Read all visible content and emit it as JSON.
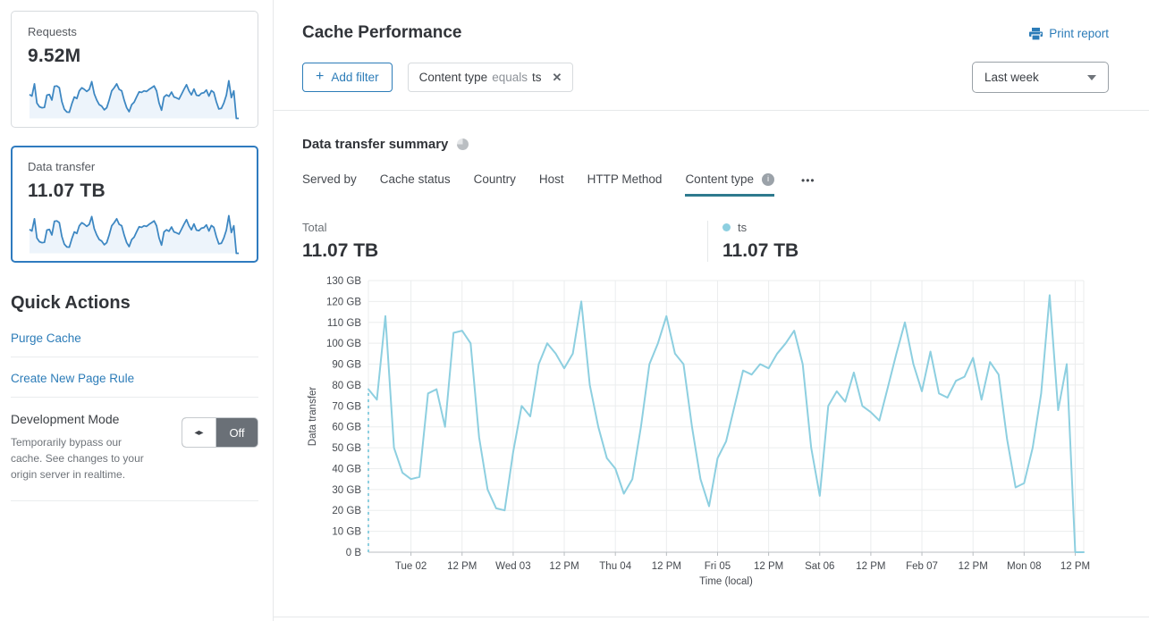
{
  "header": {
    "title": "Cache Performance",
    "print_label": "Print report"
  },
  "filters": {
    "add_filter_label": "Add filter",
    "chip": {
      "field": "Content type",
      "operator": "equals",
      "value": "ts"
    },
    "time_range": "Last week"
  },
  "sidebar": {
    "requests_card": {
      "label": "Requests",
      "value": "9.52M"
    },
    "data_transfer_card": {
      "label": "Data transfer",
      "value": "11.07 TB"
    },
    "quick_actions": {
      "title": "Quick Actions",
      "links": [
        "Purge Cache",
        "Create New Page Rule"
      ],
      "development_mode": {
        "title": "Development Mode",
        "description": "Temporarily bypass our cache. See changes to your origin server in realtime.",
        "toggle_state": "Off"
      }
    }
  },
  "summary": {
    "title": "Data transfer summary",
    "tabs": [
      "Served by",
      "Cache status",
      "Country",
      "Host",
      "HTTP Method",
      "Content type"
    ],
    "active_tab": "Content type",
    "total_label": "Total",
    "total_value": "11.07 TB",
    "series_total": "11.07 TB"
  },
  "icons": {
    "plus": "+",
    "close": "✕",
    "more": "•••",
    "info": "i",
    "dev_mode_arrows": "◂▸"
  },
  "colors": {
    "accent_blue": "#2c7cb8",
    "selected_card_border": "#2f7bbf",
    "series_line": "#8dcfe0",
    "tab_underline": "#2e7a8e",
    "sparkline_stroke": "#3d87c2",
    "sparkline_fill": "#edf4fb"
  },
  "chart_data": {
    "type": "line",
    "title": "Data transfer summary",
    "xlabel": "Time (local)",
    "ylabel": "Data transfer",
    "unit": "GB",
    "ylim": [
      0,
      130
    ],
    "grid": true,
    "legend_position": "top",
    "y_tick_step": 10,
    "y_tick_labels": [
      "0 B",
      "10 GB",
      "20 GB",
      "30 GB",
      "40 GB",
      "50 GB",
      "60 GB",
      "70 GB",
      "80 GB",
      "90 GB",
      "100 GB",
      "110 GB",
      "120 GB",
      "130 GB"
    ],
    "x_tick_labels": [
      "Tue 02",
      "12 PM",
      "Wed 03",
      "12 PM",
      "Thu 04",
      "12 PM",
      "Fri 05",
      "12 PM",
      "Sat 06",
      "12 PM",
      "Feb 07",
      "12 PM",
      "Mon 08",
      "12 PM"
    ],
    "x_tick_start_index": 5,
    "x_tick_step": 6,
    "point_interval_hours": 2,
    "series": [
      {
        "name": "ts",
        "color": "#8dcfe0",
        "total": "11.07 TB",
        "leading_dashed_from_zero": true,
        "values_gb": [
          78,
          73,
          113,
          50,
          38,
          35,
          36,
          76,
          78,
          60,
          105,
          106,
          100,
          55,
          30,
          21,
          20,
          48,
          70,
          65,
          90,
          100,
          95,
          88,
          95,
          120,
          80,
          60,
          45,
          40,
          28,
          35,
          60,
          90,
          100,
          113,
          95,
          90,
          60,
          35,
          22,
          45,
          53,
          70,
          87,
          85,
          90,
          88,
          95,
          100,
          106,
          90,
          50,
          27,
          70,
          77,
          72,
          86,
          70,
          67,
          63,
          79,
          95,
          110,
          90,
          77,
          96,
          76,
          74,
          82,
          84,
          93,
          73,
          91,
          85,
          54,
          31,
          33,
          50,
          76,
          123,
          68,
          90,
          0,
          0
        ]
      }
    ]
  }
}
